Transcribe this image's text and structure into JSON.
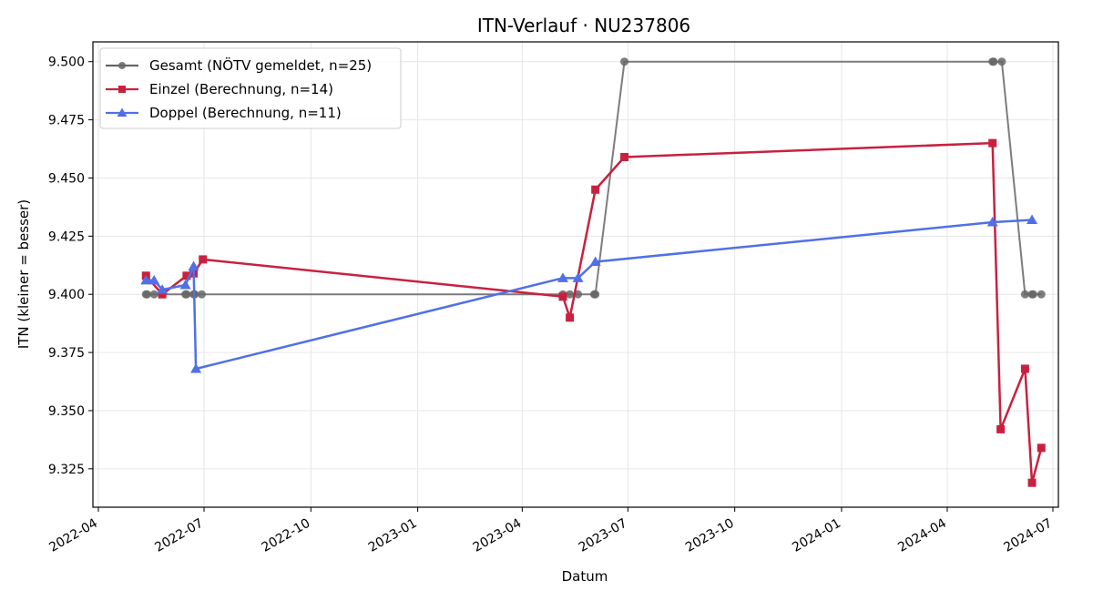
{
  "chart_data": {
    "type": "line",
    "title": "ITN-Verlauf · NU237806",
    "xlabel": "Datum",
    "ylabel": "ITN  (kleiner = besser)",
    "xlim": [
      "2022-04-01",
      "2024-07-01"
    ],
    "ylim": [
      9.3085,
      9.5085
    ],
    "x_ticks": [
      "2022-04",
      "2022-07",
      "2022-10",
      "2023-01",
      "2023-04",
      "2023-07",
      "2023-10",
      "2024-01",
      "2024-04",
      "2024-07"
    ],
    "y_ticks": [
      "9.325",
      "9.350",
      "9.375",
      "9.400",
      "9.425",
      "9.450",
      "9.475",
      "9.500"
    ],
    "grid": true,
    "legend_position": "top-left",
    "series": [
      {
        "name": "Gesamt (NÖTV gemeldet, n=25)",
        "color": "#666666",
        "marker": "circle",
        "points": [
          [
            "2022-05-12",
            9.4
          ],
          [
            "2022-05-13",
            9.4
          ],
          [
            "2022-05-19",
            9.4
          ],
          [
            "2022-06-15",
            9.4
          ],
          [
            "2022-06-16",
            9.4
          ],
          [
            "2022-06-22",
            9.4
          ],
          [
            "2022-06-23",
            9.4
          ],
          [
            "2022-06-29",
            9.4
          ],
          [
            "2023-05-06",
            9.4
          ],
          [
            "2023-05-12",
            9.4
          ],
          [
            "2023-05-19",
            9.4
          ],
          [
            "2023-06-02",
            9.4
          ],
          [
            "2023-06-03",
            9.4
          ],
          [
            "2023-06-28",
            9.5
          ],
          [
            "2024-05-10",
            9.5
          ],
          [
            "2024-05-11",
            9.5
          ],
          [
            "2024-05-18",
            9.5
          ],
          [
            "2024-06-07",
            9.4
          ],
          [
            "2024-06-13",
            9.4
          ],
          [
            "2024-06-14",
            9.4
          ],
          [
            "2024-06-21",
            9.4
          ]
        ]
      },
      {
        "name": "Einzel (Berechnung, n=14)",
        "color": "#c8213f",
        "marker": "square",
        "points": [
          [
            "2022-05-12",
            9.408
          ],
          [
            "2022-05-26",
            9.4
          ],
          [
            "2022-06-16",
            9.408
          ],
          [
            "2022-06-22",
            9.409
          ],
          [
            "2022-06-30",
            9.415
          ],
          [
            "2023-05-06",
            9.399
          ],
          [
            "2023-05-12",
            9.39
          ],
          [
            "2023-06-03",
            9.445
          ],
          [
            "2023-06-28",
            9.459
          ],
          [
            "2024-05-10",
            9.465
          ],
          [
            "2024-05-17",
            9.342
          ],
          [
            "2024-06-07",
            9.368
          ],
          [
            "2024-06-13",
            9.319
          ],
          [
            "2024-06-21",
            9.334
          ]
        ]
      },
      {
        "name": "Doppel (Berechnung, n=11)",
        "color": "#5070e8",
        "marker": "triangle",
        "points": [
          [
            "2022-05-12",
            9.406
          ],
          [
            "2022-05-19",
            9.406
          ],
          [
            "2022-05-26",
            9.402
          ],
          [
            "2022-06-15",
            9.404
          ],
          [
            "2022-06-22",
            9.412
          ],
          [
            "2022-06-24",
            9.368
          ],
          [
            "2023-05-06",
            9.407
          ],
          [
            "2023-05-19",
            9.407
          ],
          [
            "2023-06-03",
            9.414
          ],
          [
            "2024-05-10",
            9.431
          ],
          [
            "2024-06-13",
            9.432
          ]
        ]
      }
    ]
  }
}
